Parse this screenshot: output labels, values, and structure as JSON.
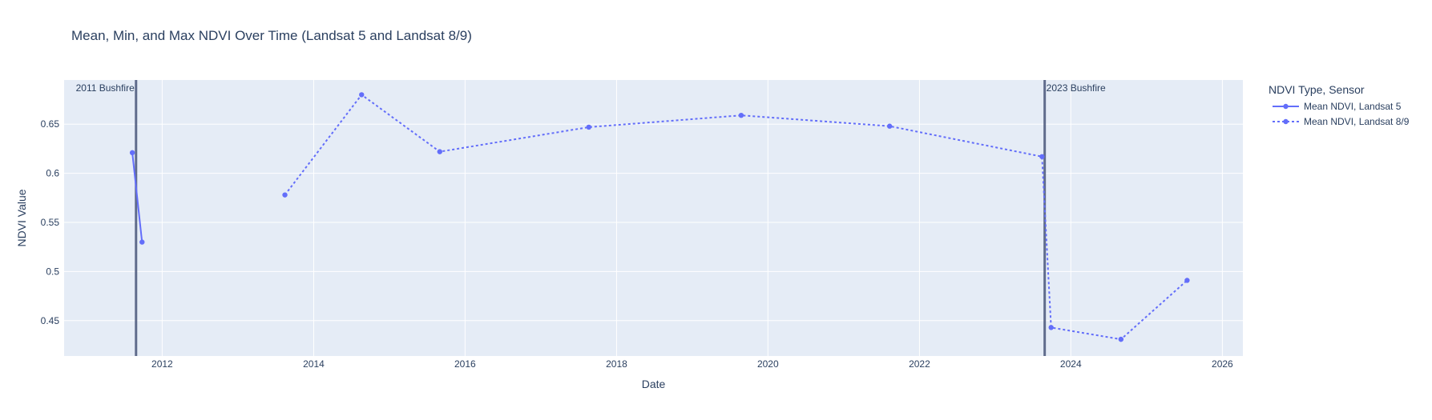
{
  "chart_data": {
    "type": "line",
    "title": "Mean, Min, and Max NDVI Over Time (Landsat 5 and Landsat 8/9)",
    "xlabel": "Date",
    "ylabel": "NDVI Value",
    "x_axis_type": "date",
    "xlim": [
      "2010-09-15",
      "2026-04-10"
    ],
    "ylim": [
      0.414,
      0.695
    ],
    "x_ticks": [
      "2012",
      "2014",
      "2016",
      "2018",
      "2020",
      "2022",
      "2024",
      "2026"
    ],
    "x_tick_dates": [
      "2012-01-01",
      "2014-01-01",
      "2016-01-01",
      "2018-01-01",
      "2020-01-01",
      "2022-01-01",
      "2024-01-01",
      "2026-01-01"
    ],
    "y_ticks": [
      0.45,
      0.5,
      0.55,
      0.6,
      0.65
    ],
    "y_tick_labels": [
      "0.45",
      "0.5",
      "0.55",
      "0.6",
      "0.65"
    ],
    "grid": true,
    "legend_title": "NDVI Type, Sensor",
    "legend_position": "right",
    "series": [
      {
        "name": "Mean NDVI, Landsat 5",
        "dash": "solid",
        "color": "#636efa",
        "x": [
          "2011-08-10",
          "2011-09-26"
        ],
        "y": [
          0.621,
          0.53
        ]
      },
      {
        "name": "Mean NDVI, Landsat 8/9",
        "dash": "dot",
        "color": "#636efa",
        "x": [
          "2013-08-15",
          "2014-08-20",
          "2015-09-01",
          "2017-08-20",
          "2019-08-25",
          "2021-08-10",
          "2023-08-15",
          "2023-09-28",
          "2024-08-30",
          "2025-07-15"
        ],
        "y": [
          0.578,
          0.68,
          0.622,
          0.647,
          0.659,
          0.648,
          0.617,
          0.443,
          0.431,
          0.491
        ]
      }
    ],
    "annotations": [
      {
        "date": "2011-08-28",
        "text": "2011 Bushfire",
        "text_side": "left"
      },
      {
        "date": "2023-08-28",
        "text": "2023 Bushfire",
        "text_side": "right"
      }
    ],
    "colors": {
      "plot_bg": "#e5ecf6",
      "grid": "#ffffff",
      "vline": "#49567a",
      "text": "#2a3f5f"
    }
  }
}
